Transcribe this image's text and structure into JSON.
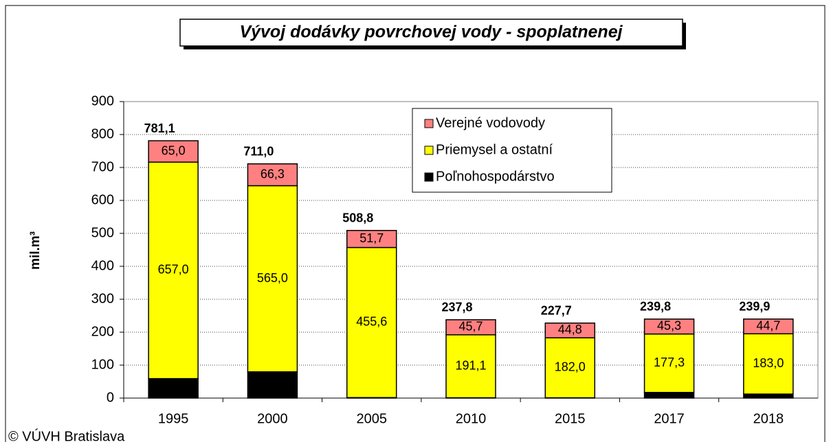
{
  "chart_data": {
    "type": "stacked_bar",
    "title": "Vývoj dodávky povrchovej vody - spoplatnenej",
    "y_label": "mil.m³",
    "footer": "© VÚVH Bratislava",
    "categories": [
      "1995",
      "2000",
      "2005",
      "2010",
      "2015",
      "2017",
      "2018"
    ],
    "series": [
      {
        "name": "Poľnohospodárstvo",
        "color": "#000000",
        "values": [
          59.1,
          79.7,
          1.5,
          1.0,
          0.9,
          17.2,
          12.2
        ],
        "value_labels": [
          "59,1",
          "79,7",
          "1,5",
          "1,0",
          "0,9",
          "17,2",
          "12,2"
        ]
      },
      {
        "name": "Priemysel a ostatní",
        "color": "#ffff00",
        "values": [
          657.0,
          565.0,
          455.6,
          191.1,
          182.0,
          177.3,
          183.0
        ],
        "value_labels": [
          "657,0",
          "565,0",
          "455,6",
          "191,1",
          "182,0",
          "177,3",
          "183,0"
        ]
      },
      {
        "name": "Verejné vodovody",
        "color": "#ff8080",
        "values": [
          65.0,
          66.3,
          51.7,
          45.7,
          44.8,
          45.3,
          44.7
        ],
        "value_labels": [
          "65,0",
          "66,3",
          "51,7",
          "45,7",
          "44,8",
          "45,3",
          "44,7"
        ]
      }
    ],
    "total_labels": [
      "781,1",
      "711,0",
      "508,8",
      "237,8",
      "227,7",
      "239,8",
      "239,9"
    ],
    "ylim": [
      0,
      900
    ],
    "yticks": [
      0,
      100,
      200,
      300,
      400,
      500,
      600,
      700,
      800,
      900
    ],
    "grid": true,
    "legend": "top-right"
  }
}
